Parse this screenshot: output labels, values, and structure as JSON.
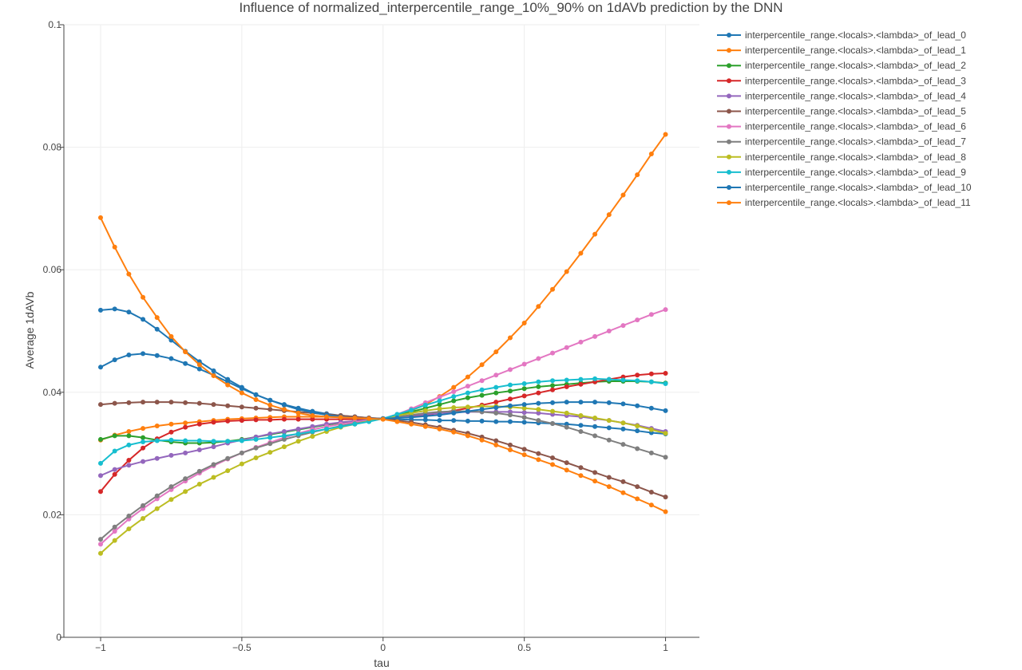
{
  "chart_data": {
    "type": "line",
    "title": "Influence of normalized_interpercentile_range_10%_90% on 1dAVb prediction by the DNN",
    "xlabel": "tau",
    "ylabel": "Average 1dAVb",
    "xlim": [
      -1.13,
      1.12
    ],
    "ylim": [
      0,
      0.1
    ],
    "xticks": [
      -1,
      -0.5,
      0,
      0.5,
      1
    ],
    "xtick_labels": [
      "−1",
      "−0.5",
      "0",
      "0.5",
      "1"
    ],
    "yticks": [
      0,
      0.02,
      0.04,
      0.06,
      0.08,
      0.1
    ],
    "ytick_labels": [
      "0",
      "0.02",
      "0.04",
      "0.06",
      "0.08",
      "0.1"
    ],
    "grid": true,
    "legend_position": "top-right",
    "x": [
      -1.0,
      -0.95,
      -0.9,
      -0.85,
      -0.8,
      -0.75,
      -0.7,
      -0.65,
      -0.6,
      -0.55,
      -0.5,
      -0.45,
      -0.4,
      -0.35,
      -0.3,
      -0.25,
      -0.2,
      -0.15,
      -0.1,
      -0.05,
      0.0,
      0.05,
      0.1,
      0.15,
      0.2,
      0.25,
      0.3,
      0.35,
      0.4,
      0.45,
      0.5,
      0.55,
      0.6,
      0.65,
      0.7,
      0.75,
      0.8,
      0.85,
      0.9,
      0.95,
      1.0
    ],
    "series": [
      {
        "name": "interpercentile_range.<locals>.<lambda>_of_lead_0",
        "color": "#1f77b4",
        "values": [
          0.0534,
          0.0536,
          0.0531,
          0.0519,
          0.0503,
          0.0485,
          0.0467,
          0.045,
          0.0435,
          0.0421,
          0.0408,
          0.0396,
          0.0387,
          0.038,
          0.0374,
          0.0369,
          0.0365,
          0.0362,
          0.036,
          0.0358,
          0.0357,
          0.0356,
          0.0355,
          0.0355,
          0.0354,
          0.0354,
          0.0353,
          0.0353,
          0.0352,
          0.0352,
          0.0351,
          0.035,
          0.0349,
          0.0348,
          0.0346,
          0.0344,
          0.0342,
          0.034,
          0.0337,
          0.0334,
          0.0332
        ]
      },
      {
        "name": "interpercentile_range.<locals>.<lambda>_of_lead_1",
        "color": "#ff7f0e",
        "values": [
          0.0322,
          0.033,
          0.0336,
          0.0341,
          0.0345,
          0.0348,
          0.035,
          0.0352,
          0.0354,
          0.0356,
          0.0357,
          0.0358,
          0.0359,
          0.036,
          0.036,
          0.036,
          0.036,
          0.0359,
          0.0358,
          0.0357,
          0.0356,
          0.0362,
          0.037,
          0.038,
          0.0393,
          0.0408,
          0.0425,
          0.0445,
          0.0466,
          0.0489,
          0.0513,
          0.054,
          0.0568,
          0.0597,
          0.0627,
          0.0658,
          0.069,
          0.0722,
          0.0755,
          0.0789,
          0.0821
        ]
      },
      {
        "name": "interpercentile_range.<locals>.<lambda>_of_lead_2",
        "color": "#2ca02c",
        "values": [
          0.0323,
          0.0329,
          0.0329,
          0.0326,
          0.0322,
          0.0319,
          0.0317,
          0.0317,
          0.0318,
          0.032,
          0.0323,
          0.0327,
          0.0331,
          0.0335,
          0.0339,
          0.0343,
          0.0347,
          0.035,
          0.0352,
          0.0354,
          0.0357,
          0.0362,
          0.0368,
          0.0374,
          0.038,
          0.0386,
          0.0391,
          0.0395,
          0.0399,
          0.0402,
          0.0406,
          0.0409,
          0.0411,
          0.0413,
          0.0415,
          0.0417,
          0.0418,
          0.0418,
          0.0418,
          0.0417,
          0.0415
        ]
      },
      {
        "name": "interpercentile_range.<locals>.<lambda>_of_lead_3",
        "color": "#d62728",
        "values": [
          0.0238,
          0.0266,
          0.0289,
          0.0309,
          0.0324,
          0.0335,
          0.0343,
          0.0348,
          0.0351,
          0.0353,
          0.0354,
          0.0355,
          0.0355,
          0.0356,
          0.0356,
          0.0356,
          0.0356,
          0.0356,
          0.0356,
          0.0356,
          0.0357,
          0.0358,
          0.036,
          0.0363,
          0.0366,
          0.037,
          0.0374,
          0.0379,
          0.0384,
          0.0389,
          0.0394,
          0.0399,
          0.0404,
          0.0409,
          0.0413,
          0.0417,
          0.0421,
          0.0425,
          0.0428,
          0.043,
          0.0431
        ]
      },
      {
        "name": "interpercentile_range.<locals>.<lambda>_of_lead_4",
        "color": "#9467bd",
        "values": [
          0.0264,
          0.0274,
          0.0281,
          0.0287,
          0.0292,
          0.0297,
          0.0301,
          0.0306,
          0.0311,
          0.0317,
          0.0322,
          0.0327,
          0.0332,
          0.0336,
          0.034,
          0.0344,
          0.0348,
          0.0351,
          0.0353,
          0.0355,
          0.0357,
          0.0359,
          0.0362,
          0.0364,
          0.0366,
          0.0367,
          0.0368,
          0.0368,
          0.0368,
          0.0368,
          0.0367,
          0.0366,
          0.0364,
          0.0362,
          0.036,
          0.0357,
          0.0354,
          0.035,
          0.0346,
          0.0341,
          0.0336
        ]
      },
      {
        "name": "interpercentile_range.<locals>.<lambda>_of_lead_5",
        "color": "#8c564b",
        "values": [
          0.038,
          0.0382,
          0.0383,
          0.0384,
          0.0384,
          0.0384,
          0.0383,
          0.0382,
          0.038,
          0.0378,
          0.0376,
          0.0374,
          0.0372,
          0.037,
          0.0368,
          0.0366,
          0.0364,
          0.0362,
          0.036,
          0.0358,
          0.0357,
          0.0354,
          0.0351,
          0.0347,
          0.0343,
          0.0338,
          0.0333,
          0.0327,
          0.0321,
          0.0314,
          0.0307,
          0.03,
          0.0293,
          0.0285,
          0.0277,
          0.0269,
          0.0261,
          0.0254,
          0.0246,
          0.0237,
          0.0229
        ]
      },
      {
        "name": "interpercentile_range.<locals>.<lambda>_of_lead_6",
        "color": "#e377c2",
        "values": [
          0.0152,
          0.0173,
          0.0193,
          0.021,
          0.0226,
          0.0241,
          0.0255,
          0.0268,
          0.028,
          0.0291,
          0.0301,
          0.031,
          0.0318,
          0.0326,
          0.0333,
          0.0339,
          0.0344,
          0.0348,
          0.0351,
          0.0354,
          0.0357,
          0.0364,
          0.0373,
          0.0383,
          0.0392,
          0.0401,
          0.041,
          0.0419,
          0.0428,
          0.0437,
          0.0446,
          0.0455,
          0.0464,
          0.0473,
          0.0482,
          0.0491,
          0.05,
          0.0509,
          0.0518,
          0.0527,
          0.0535
        ]
      },
      {
        "name": "interpercentile_range.<locals>.<lambda>_of_lead_7",
        "color": "#7f7f7f",
        "values": [
          0.016,
          0.018,
          0.0198,
          0.0215,
          0.0231,
          0.0246,
          0.0259,
          0.0271,
          0.0282,
          0.0292,
          0.0301,
          0.0309,
          0.0316,
          0.0323,
          0.0329,
          0.0335,
          0.034,
          0.0345,
          0.0349,
          0.0353,
          0.0357,
          0.036,
          0.0363,
          0.0366,
          0.0368,
          0.0369,
          0.0369,
          0.0368,
          0.0366,
          0.0363,
          0.0359,
          0.0354,
          0.0349,
          0.0343,
          0.0336,
          0.0329,
          0.0322,
          0.0315,
          0.0308,
          0.0301,
          0.0294
        ]
      },
      {
        "name": "interpercentile_range.<locals>.<lambda>_of_lead_8",
        "color": "#bcbd22",
        "values": [
          0.0137,
          0.0158,
          0.0177,
          0.0194,
          0.021,
          0.0225,
          0.0238,
          0.025,
          0.0261,
          0.0272,
          0.0283,
          0.0293,
          0.0302,
          0.0311,
          0.032,
          0.0328,
          0.0336,
          0.0343,
          0.0348,
          0.0353,
          0.0357,
          0.0362,
          0.0366,
          0.037,
          0.0373,
          0.0375,
          0.0376,
          0.0377,
          0.0377,
          0.0376,
          0.0374,
          0.0372,
          0.0369,
          0.0366,
          0.0362,
          0.0358,
          0.0354,
          0.035,
          0.0345,
          0.0339,
          0.0333
        ]
      },
      {
        "name": "interpercentile_range.<locals>.<lambda>_of_lead_9",
        "color": "#17becf",
        "values": [
          0.0284,
          0.0304,
          0.0314,
          0.0319,
          0.0321,
          0.0322,
          0.0321,
          0.0321,
          0.032,
          0.032,
          0.0321,
          0.0323,
          0.0326,
          0.0329,
          0.0332,
          0.0336,
          0.034,
          0.0344,
          0.0348,
          0.0352,
          0.0357,
          0.0364,
          0.0371,
          0.0379,
          0.0386,
          0.0393,
          0.0399,
          0.0404,
          0.0408,
          0.0412,
          0.0414,
          0.0417,
          0.0419,
          0.042,
          0.0421,
          0.0422,
          0.0421,
          0.042,
          0.0419,
          0.0417,
          0.0414
        ]
      },
      {
        "name": "interpercentile_range.<locals>.<lambda>_of_lead_10",
        "color": "#1f77b4",
        "values": [
          0.0441,
          0.0453,
          0.0461,
          0.0463,
          0.046,
          0.0455,
          0.0447,
          0.0438,
          0.0428,
          0.0417,
          0.0406,
          0.0396,
          0.0387,
          0.0379,
          0.0372,
          0.0367,
          0.0363,
          0.036,
          0.0358,
          0.0357,
          0.0357,
          0.0358,
          0.0359,
          0.0361,
          0.0363,
          0.0366,
          0.0369,
          0.0372,
          0.0375,
          0.0378,
          0.038,
          0.0382,
          0.0383,
          0.0384,
          0.0384,
          0.0384,
          0.0383,
          0.0381,
          0.0378,
          0.0374,
          0.037
        ]
      },
      {
        "name": "interpercentile_range.<locals>.<lambda>_of_lead_11",
        "color": "#ff7f0e",
        "values": [
          0.0685,
          0.0637,
          0.0593,
          0.0555,
          0.0522,
          0.0491,
          0.0466,
          0.0445,
          0.0427,
          0.0412,
          0.0399,
          0.0388,
          0.0379,
          0.0372,
          0.0366,
          0.0362,
          0.036,
          0.0359,
          0.0358,
          0.0357,
          0.0356,
          0.0352,
          0.0348,
          0.0344,
          0.034,
          0.0335,
          0.0329,
          0.0322,
          0.0314,
          0.0306,
          0.0298,
          0.029,
          0.0282,
          0.0273,
          0.0264,
          0.0255,
          0.0246,
          0.0236,
          0.0226,
          0.0216,
          0.0205
        ]
      }
    ]
  }
}
